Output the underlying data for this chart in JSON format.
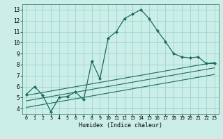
{
  "xlabel": "Humidex (Indice chaleur)",
  "bg_color": "#cceee8",
  "grid_color": "#99d4cc",
  "line_color": "#1a6b5a",
  "xlim": [
    -0.5,
    23.5
  ],
  "ylim": [
    3.5,
    13.5
  ],
  "yticks": [
    4,
    5,
    6,
    7,
    8,
    9,
    10,
    11,
    12,
    13
  ],
  "xticks": [
    0,
    1,
    2,
    3,
    4,
    5,
    6,
    7,
    8,
    9,
    10,
    11,
    12,
    13,
    14,
    15,
    16,
    17,
    18,
    19,
    20,
    21,
    22,
    23
  ],
  "main_line_x": [
    0,
    1,
    2,
    3,
    4,
    5,
    6,
    7,
    8,
    9,
    10,
    11,
    12,
    13,
    14,
    15,
    16,
    17,
    18,
    19,
    20,
    21,
    22,
    23
  ],
  "main_line_y": [
    5.3,
    6.0,
    5.2,
    3.7,
    5.0,
    5.1,
    5.5,
    4.8,
    8.3,
    6.7,
    10.4,
    11.0,
    12.2,
    12.6,
    13.0,
    12.2,
    11.1,
    10.1,
    9.0,
    8.7,
    8.6,
    8.7,
    8.1,
    8.1
  ],
  "line2_x": [
    0,
    23
  ],
  "line2_y": [
    5.2,
    8.2
  ],
  "line3_x": [
    0,
    23
  ],
  "line3_y": [
    4.7,
    7.7
  ],
  "line4_x": [
    0,
    23
  ],
  "line4_y": [
    4.1,
    7.1
  ]
}
